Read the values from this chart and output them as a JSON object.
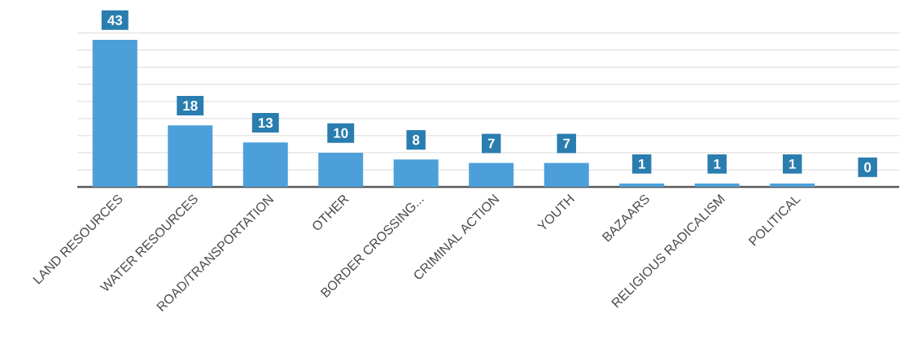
{
  "chart_data": {
    "type": "bar",
    "categories": [
      "LAND RESOURCES",
      "WATER RESOURCES",
      "ROAD/TRANSPORTATION",
      "OTHER",
      "BORDER CROSSING...",
      "CRIMINAL ACTION",
      "YOUTH",
      "BAZAARS",
      "RELIGIOUS RADICALISM",
      "POLITICAL",
      null
    ],
    "values": [
      43,
      18,
      13,
      10,
      8,
      7,
      7,
      1,
      1,
      1,
      0
    ],
    "color": "#4d9fd9",
    "grid": "y",
    "tick_labels": "x",
    "data_labels": true
  }
}
